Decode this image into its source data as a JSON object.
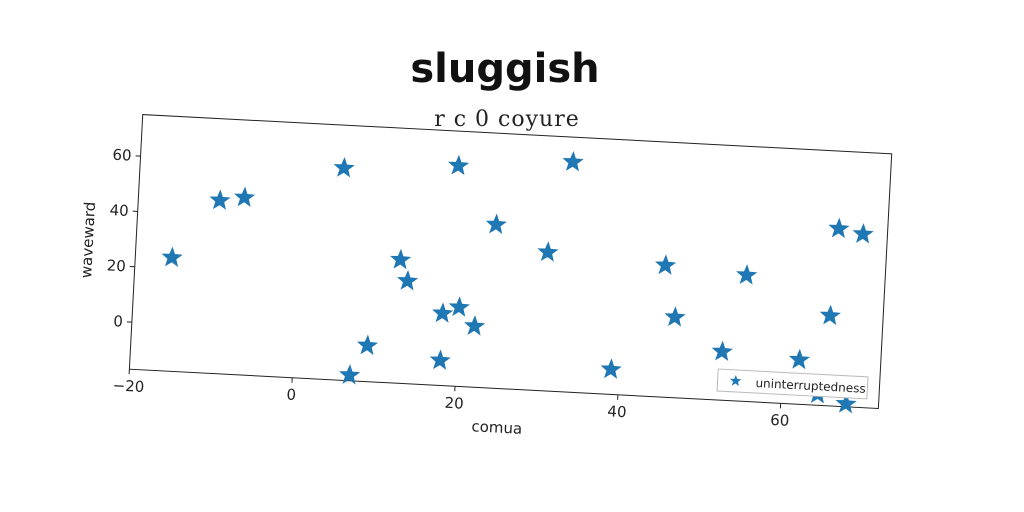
{
  "chart_data": {
    "type": "scatter",
    "title": "sluggish",
    "subtitle": "r c 0 coyure",
    "xlabel": "comua",
    "ylabel": "waveward",
    "xlim": [
      -20,
      72
    ],
    "ylim": [
      -17,
      75
    ],
    "xticks": [
      -20,
      0,
      20,
      40,
      60
    ],
    "yticks": [
      0,
      20,
      40,
      60
    ],
    "grid": false,
    "legend_position": "bottom-right",
    "series": [
      {
        "name": "uninterruptedness",
        "color": "#1f77b4",
        "marker": "star",
        "points": [
          [
            -15.5,
            24
          ],
          [
            -10,
            45.5
          ],
          [
            -7,
            47
          ],
          [
            5,
            59.5
          ],
          [
            19,
            62.5
          ],
          [
            33,
            66
          ],
          [
            12.5,
            27.5
          ],
          [
            13.5,
            20
          ],
          [
            24,
            42
          ],
          [
            30.5,
            33
          ],
          [
            18,
            9
          ],
          [
            20,
            11.5
          ],
          [
            22,
            5
          ],
          [
            9,
            -4
          ],
          [
            7,
            -15
          ],
          [
            18,
            -8
          ],
          [
            39,
            -8
          ],
          [
            45,
            30.5
          ],
          [
            46.5,
            12
          ],
          [
            52.5,
            0.5
          ],
          [
            55,
            28.5
          ],
          [
            62,
            -1
          ],
          [
            64.5,
            -13
          ],
          [
            65.5,
            15.5
          ],
          [
            66,
            47
          ],
          [
            69,
            45.5
          ],
          [
            68,
            -16
          ]
        ]
      }
    ]
  }
}
